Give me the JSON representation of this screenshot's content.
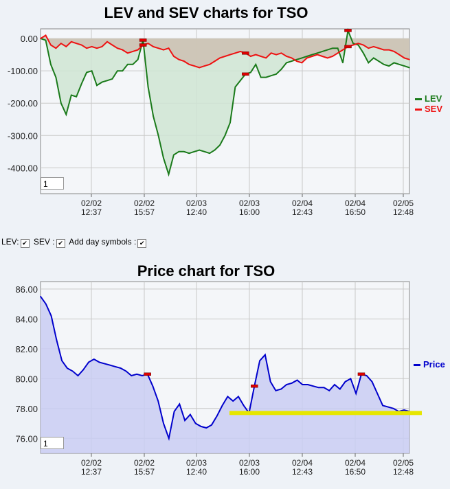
{
  "lev_chart": {
    "title": "LEV and SEV charts for TSO",
    "zoom_value": "1",
    "legend": [
      {
        "label": "LEV",
        "color": "#1a7a1a"
      },
      {
        "label": "SEV",
        "color": "#ee1111"
      }
    ]
  },
  "controls": {
    "lev_label": "LEV:",
    "sev_label": "SEV :",
    "day_symbols_label": "Add day symbols :",
    "checkmark": "✔"
  },
  "price_chart": {
    "title": "Price chart for TSO",
    "zoom_value": "1",
    "legend": [
      {
        "label": "Price",
        "color": "#0000cc"
      }
    ]
  },
  "chart_data": [
    {
      "type": "area",
      "title": "LEV and SEV charts for TSO",
      "x_ticks": [
        {
          "date": "02/02",
          "time": "12:37"
        },
        {
          "date": "02/02",
          "time": "15:57"
        },
        {
          "date": "02/03",
          "time": "12:40"
        },
        {
          "date": "02/03",
          "time": "16:00"
        },
        {
          "date": "02/04",
          "time": "12:43"
        },
        {
          "date": "02/04",
          "time": "16:50"
        },
        {
          "date": "02/05",
          "time": "12:48"
        }
      ],
      "y_ticks": [
        "0.00",
        "-100.00",
        "-200.00",
        "-300.00",
        "-400.00"
      ],
      "ylim": [
        -480,
        30
      ],
      "grid": true,
      "legend_position": "right",
      "series": [
        {
          "name": "LEV",
          "color": "#1a7a1a",
          "fill": "#cfe5d4",
          "values": [
            0,
            -5,
            -80,
            -120,
            -200,
            -235,
            -175,
            -180,
            -140,
            -105,
            -100,
            -145,
            -135,
            -130,
            -125,
            -100,
            -100,
            -80,
            -80,
            -65,
            -5,
            -150,
            -240,
            -300,
            -370,
            -420,
            -360,
            -350,
            -350,
            -355,
            -350,
            -345,
            -350,
            -355,
            -345,
            -330,
            -300,
            -260,
            -150,
            -130,
            -110,
            -105,
            -80,
            -120,
            -120,
            -115,
            -110,
            -95,
            -75,
            -70,
            -65,
            -60,
            -55,
            -50,
            -45,
            -40,
            -35,
            -30,
            -30,
            -75,
            25,
            -15,
            -20,
            -45,
            -75,
            -60,
            -70,
            -80,
            -85,
            -75,
            -80,
            -85,
            -90
          ]
        },
        {
          "name": "SEV",
          "color": "#ee1111",
          "fill": "#cdbfb2",
          "values": [
            0,
            10,
            -20,
            -30,
            -15,
            -25,
            -10,
            -15,
            -20,
            -30,
            -25,
            -30,
            -25,
            -10,
            -20,
            -30,
            -35,
            -45,
            -40,
            -35,
            -20,
            -15,
            -25,
            -30,
            -35,
            -30,
            -55,
            -65,
            -70,
            -80,
            -85,
            -90,
            -85,
            -80,
            -70,
            -60,
            -55,
            -50,
            -45,
            -40,
            -45,
            -55,
            -50,
            -55,
            -60,
            -45,
            -50,
            -45,
            -55,
            -60,
            -70,
            -75,
            -60,
            -55,
            -50,
            -55,
            -60,
            -55,
            -45,
            -35,
            -25,
            -20,
            -15,
            -20,
            -30,
            -25,
            -30,
            -35,
            -35,
            -40,
            -50,
            -60,
            -65
          ]
        }
      ],
      "day_markers_index": [
        20,
        40,
        60
      ]
    },
    {
      "type": "area",
      "title": "Price chart for TSO",
      "x_ticks": [
        {
          "date": "02/02",
          "time": "12:37"
        },
        {
          "date": "02/02",
          "time": "15:57"
        },
        {
          "date": "02/03",
          "time": "12:40"
        },
        {
          "date": "02/03",
          "time": "16:00"
        },
        {
          "date": "02/04",
          "time": "12:43"
        },
        {
          "date": "02/04",
          "time": "16:50"
        },
        {
          "date": "02/05",
          "time": "12:48"
        }
      ],
      "y_ticks": [
        "86.00",
        "84.00",
        "82.00",
        "80.00",
        "78.00",
        "76.00"
      ],
      "ylim": [
        75,
        86.5
      ],
      "grid": true,
      "legend_position": "right",
      "series": [
        {
          "name": "Price",
          "color": "#0000cc",
          "fill": "#c9cdf3",
          "values": [
            85.5,
            85.0,
            84.2,
            82.6,
            81.2,
            80.7,
            80.5,
            80.2,
            80.6,
            81.1,
            81.3,
            81.1,
            81.0,
            80.9,
            80.8,
            80.7,
            80.5,
            80.2,
            80.3,
            80.2,
            80.3,
            79.5,
            78.5,
            77.0,
            76.0,
            77.8,
            78.3,
            77.2,
            77.6,
            77.0,
            76.8,
            76.7,
            76.9,
            77.5,
            78.2,
            78.8,
            78.5,
            78.8,
            78.2,
            77.7,
            79.5,
            81.2,
            81.6,
            79.8,
            79.2,
            79.3,
            79.6,
            79.7,
            79.9,
            79.6,
            79.6,
            79.5,
            79.4,
            79.4,
            79.2,
            79.6,
            79.3,
            79.8,
            80.0,
            79.0,
            80.3,
            80.2,
            79.8,
            79.0,
            78.2,
            78.1,
            78.0,
            77.8,
            77.9,
            77.8
          ]
        }
      ],
      "day_markers_index": [
        20,
        40,
        60
      ],
      "highlight_level": 77.7
    }
  ]
}
